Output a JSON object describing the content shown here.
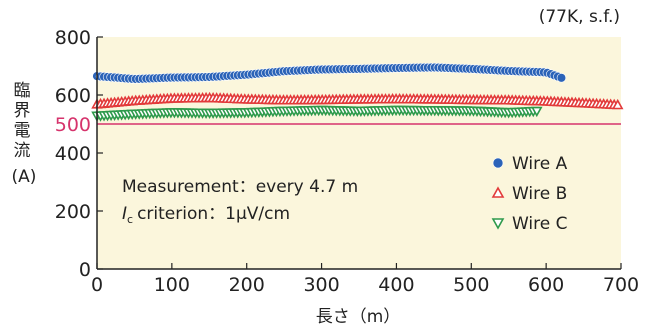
{
  "chart_data": {
    "type": "scatter",
    "condition_note": "(77K, s.f.)",
    "ylabel_chars": [
      "臨",
      "界",
      "電",
      "流"
    ],
    "ylabel_unit": "(A)",
    "xlabel": "長さ（m）",
    "xlim": [
      0,
      700
    ],
    "ylim": [
      0,
      800
    ],
    "x_ticks": [
      0,
      100,
      200,
      300,
      400,
      500,
      600,
      700
    ],
    "y_ticks": [
      0,
      200,
      400,
      600,
      800
    ],
    "reference_line": {
      "value": 500,
      "label": "500",
      "color": "#d6336c"
    },
    "annotations": [
      "Measurement：every 4.7 m",
      "criterion：1μV/cm"
    ],
    "annotation_symbol": "I",
    "annotation_symbol_sub": "c",
    "series": [
      {
        "name": "Wire A",
        "marker": "circle",
        "color": "#2b63b8",
        "points": [
          [
            0,
            665
          ],
          [
            50,
            655
          ],
          [
            100,
            660
          ],
          [
            150,
            662
          ],
          [
            200,
            670
          ],
          [
            250,
            682
          ],
          [
            300,
            688
          ],
          [
            350,
            690
          ],
          [
            400,
            693
          ],
          [
            450,
            695
          ],
          [
            500,
            690
          ],
          [
            550,
            683
          ],
          [
            600,
            678
          ],
          [
            625,
            655
          ]
        ]
      },
      {
        "name": "Wire B",
        "marker": "triangle-up",
        "color": "#e23a3a",
        "points": [
          [
            0,
            568
          ],
          [
            50,
            580
          ],
          [
            100,
            588
          ],
          [
            150,
            590
          ],
          [
            200,
            585
          ],
          [
            250,
            582
          ],
          [
            300,
            583
          ],
          [
            350,
            585
          ],
          [
            400,
            586
          ],
          [
            450,
            585
          ],
          [
            500,
            583
          ],
          [
            550,
            582
          ],
          [
            600,
            578
          ],
          [
            650,
            572
          ],
          [
            700,
            565
          ]
        ]
      },
      {
        "name": "Wire C",
        "marker": "triangle-down",
        "color": "#2e9a4c",
        "points": [
          [
            0,
            528
          ],
          [
            50,
            535
          ],
          [
            100,
            540
          ],
          [
            150,
            538
          ],
          [
            200,
            540
          ],
          [
            250,
            545
          ],
          [
            300,
            548
          ],
          [
            350,
            545
          ],
          [
            400,
            548
          ],
          [
            450,
            547
          ],
          [
            500,
            546
          ],
          [
            550,
            540
          ],
          [
            590,
            545
          ]
        ]
      }
    ],
    "plot_background": "#fbf6dc",
    "grid": false,
    "legend_position": "right"
  }
}
